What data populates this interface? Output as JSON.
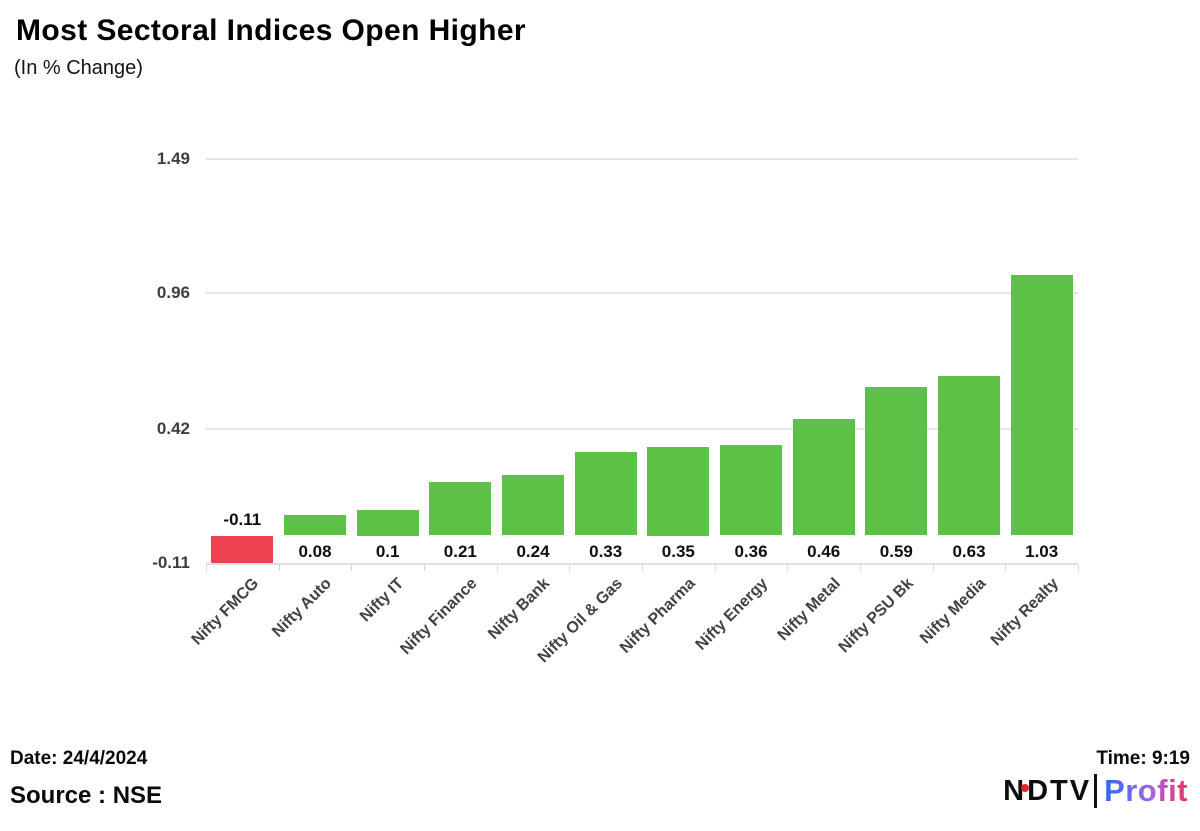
{
  "header": {
    "title": "Most Sectoral Indices Open Higher",
    "subtitle": "(In % Change)"
  },
  "chart_data": {
    "type": "bar",
    "title": "Most Sectoral Indices Open Higher",
    "subtitle": "(In % Change)",
    "categories": [
      "Nifty FMCG",
      "Nifty Auto",
      "Nifty IT",
      "Nifty Finance",
      "Nifty Bank",
      "Nifty Oil & Gas",
      "Nifty Pharma",
      "Nifty Energy",
      "Nifty Metal",
      "Nifty PSU Bk",
      "Nifty Media",
      "Nifty Realty"
    ],
    "values": [
      -0.11,
      0.08,
      0.1,
      0.21,
      0.24,
      0.33,
      0.35,
      0.36,
      0.46,
      0.59,
      0.63,
      1.03
    ],
    "yticks": [
      1.49,
      0.96,
      0.42,
      -0.11
    ],
    "ylim": [
      -0.11,
      1.6
    ],
    "xlabel": "",
    "ylabel": "",
    "grid": true,
    "legend_position": "none",
    "colors": {
      "positive_bar": "#5cc247",
      "negative_bar": "#ee4150",
      "gridline": "#e5e5e5",
      "axis_line": "#dedede",
      "tick_label": "#3a3f44",
      "category_label": "#3f4246",
      "value_label": "#101010"
    }
  },
  "footer": {
    "date_label": "Date: 24/4/2024",
    "source_label": "Source : NSE",
    "time_label": "Time: 9:19",
    "logo": {
      "ndtv_part1": "N",
      "ndtv_part2": "DTV",
      "separator": "|",
      "profit": "Profit",
      "dot_color": "#e3262c",
      "profit_gradient": [
        "#2a6cf0",
        "#a262ec",
        "#f5305f"
      ]
    }
  }
}
